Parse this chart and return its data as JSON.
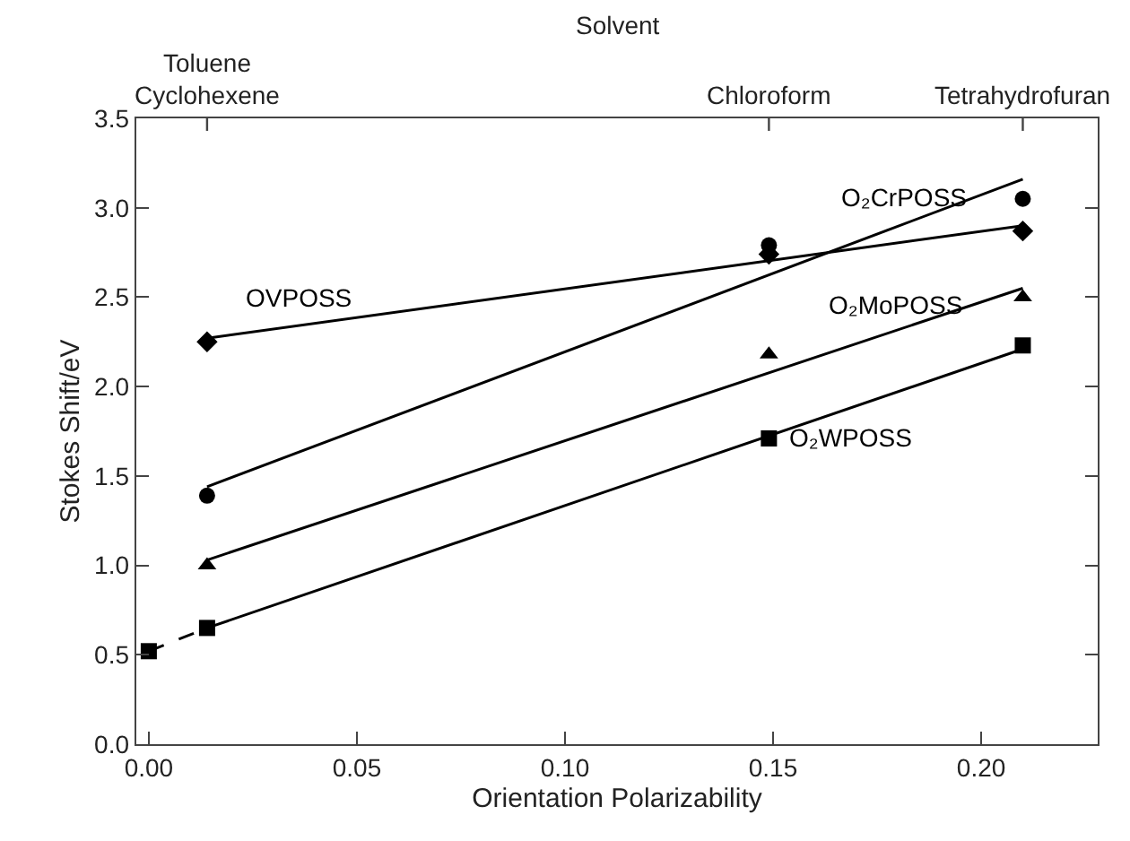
{
  "chart_data": {
    "type": "scatter",
    "xlabel": "Orientation Polarizability",
    "ylabel": "Stokes Shift/eV",
    "x2label": "Solvent",
    "xlim": [
      -0.003,
      0.228
    ],
    "xticks": [
      {
        "value": 0,
        "label": "0.00"
      },
      {
        "value": 0.05,
        "label": "0.05"
      },
      {
        "value": 0.1,
        "label": "0.10"
      },
      {
        "value": 0.15,
        "label": "0.15"
      },
      {
        "value": 0.2,
        "label": "0.20"
      }
    ],
    "annotations": [
      {
        "text": "Toluene\nCyclohexene",
        "x": 0.014
      },
      {
        "text": "Chloroform",
        "x": 0.149
      },
      {
        "text": "Tetrahydrofuran",
        "x": 0.21
      }
    ],
    "ylim": [
      0,
      3.5
    ],
    "yticks": [
      {
        "value": 0,
        "label": "0.0"
      },
      {
        "value": 0.5,
        "label": "0.5"
      },
      {
        "value": 1,
        "label": "1.0"
      },
      {
        "value": 1.5,
        "label": "1.5"
      },
      {
        "value": 2,
        "label": "2.0"
      },
      {
        "value": 2.5,
        "label": "2.5"
      },
      {
        "value": 3,
        "label": "3.0"
      },
      {
        "value": 3.5,
        "label": "3.5"
      }
    ],
    "grid": false,
    "legend": false,
    "series": [
      {
        "name": "OVPOSS",
        "marker": "diamond",
        "color": "#000000",
        "x": [
          0.014,
          0.149,
          0.21
        ],
        "values": [
          2.25,
          2.74,
          2.87
        ]
      },
      {
        "name": "O₂CrPOSS",
        "marker": "circle",
        "color": "#000000",
        "x": [
          0.014,
          0.149,
          0.21
        ],
        "values": [
          1.39,
          2.79,
          3.05
        ]
      },
      {
        "name": "O₂MoPOSS",
        "marker": "triangle",
        "color": "#000000",
        "x": [
          0.014,
          0.149,
          0.21
        ],
        "values": [
          1.0,
          2.18,
          2.5
        ]
      },
      {
        "name": "O₂WPOSS",
        "marker": "square",
        "color": "#000000",
        "x": [
          0,
          0.014,
          0.149,
          0.21
        ],
        "values": [
          0.52,
          0.65,
          1.71,
          2.23
        ]
      },
      {
        "type": "line",
        "marker": "none",
        "line_style": "solid",
        "color": "#000000",
        "x": [
          0.014,
          0.21
        ],
        "values": [
          2.27,
          2.9
        ]
      },
      {
        "type": "line",
        "marker": "none",
        "line_style": "solid",
        "color": "#000000",
        "x": [
          0.014,
          0.21
        ],
        "values": [
          1.44,
          3.16
        ]
      },
      {
        "type": "line",
        "marker": "none",
        "line_style": "solid",
        "color": "#000000",
        "x": [
          0.014,
          0.21
        ],
        "values": [
          1.03,
          2.55
        ]
      },
      {
        "type": "line",
        "marker": "none",
        "line_style": "solid",
        "color": "#000000",
        "x": [
          0.014,
          0.21
        ],
        "values": [
          0.65,
          2.21
        ]
      },
      {
        "type": "line",
        "marker": "none",
        "line_style": "dashed",
        "color": "#000000",
        "x": [
          0,
          0.014
        ],
        "values": [
          0.52,
          0.65
        ]
      }
    ]
  }
}
